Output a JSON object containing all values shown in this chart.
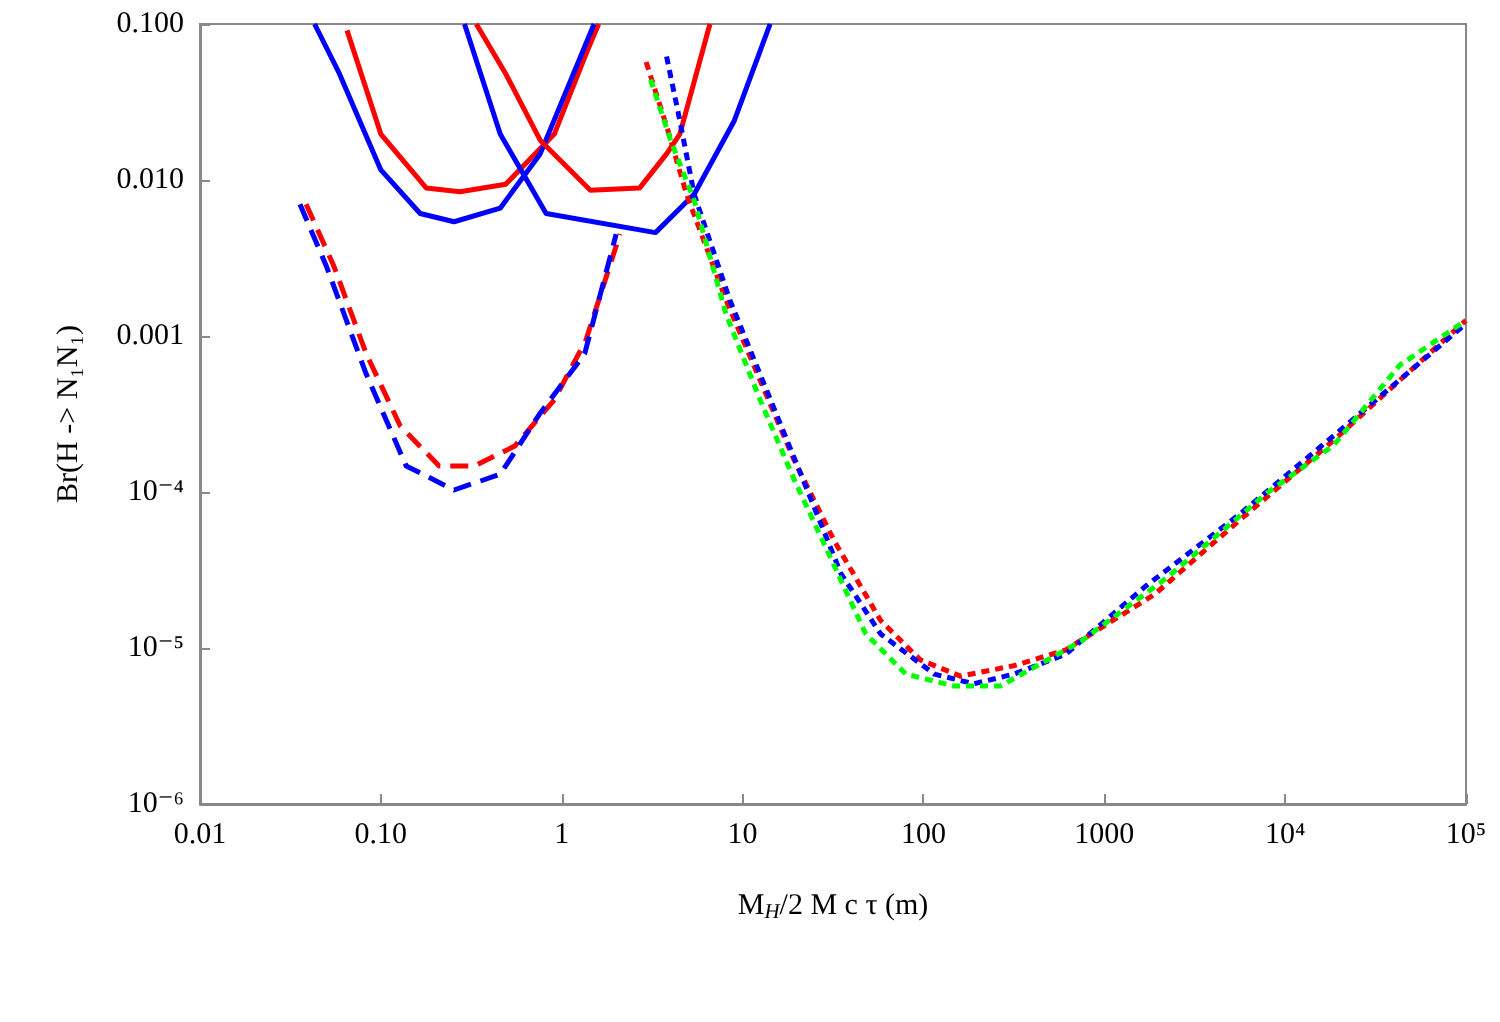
{
  "chart_data": {
    "type": "line",
    "xlabel": "M$_{H}$/2 M c τ (m)",
    "ylabel": "Br(H -> N₁N₁)",
    "log": "xy",
    "grid": false,
    "marker": "none",
    "xlim": [
      0.01,
      100000
    ],
    "ylim": [
      1e-06,
      0.1
    ],
    "xticks": [
      {
        "value": 0.01,
        "label": "0.01"
      },
      {
        "value": 0.1,
        "label": "0.10"
      },
      1,
      10,
      100,
      1000,
      {
        "value": 10000,
        "label": "10⁴"
      },
      {
        "value": 100000,
        "label": "10⁵"
      }
    ],
    "yticks": [
      {
        "value": 1e-06,
        "label": "10⁻⁶"
      },
      {
        "value": 1e-05,
        "label": "10⁻⁵"
      },
      {
        "value": 0.0001,
        "label": "10⁻⁴"
      },
      {
        "value": 0.001,
        "label": "0.001"
      },
      {
        "value": 0.01,
        "label": "0.010"
      },
      {
        "value": 0.1,
        "label": "0.100"
      }
    ],
    "series": [
      {
        "color": "#ff0000",
        "line_style": "solid",
        "x": [
          0.065,
          0.1,
          0.178,
          0.274,
          0.49,
          0.91,
          1.36,
          1.6
        ],
        "values": [
          0.091,
          0.0197,
          0.0089,
          0.0084,
          0.0094,
          0.0197,
          0.064,
          0.1
        ]
      },
      {
        "color": "#0000ff",
        "line_style": "solid",
        "x": [
          0.043,
          0.059,
          0.1,
          0.165,
          0.254,
          0.457,
          0.76,
          1.51
        ],
        "values": [
          0.1,
          0.048,
          0.0116,
          0.0061,
          0.0054,
          0.0066,
          0.0147,
          0.1
        ]
      },
      {
        "color": "#ff0000",
        "line_style": "solid",
        "x": [
          0.337,
          0.49,
          0.76,
          1.44,
          2.7,
          3.8,
          4.5,
          6.6
        ],
        "values": [
          0.1,
          0.048,
          0.018,
          0.0086,
          0.0089,
          0.0147,
          0.0197,
          0.1
        ]
      },
      {
        "color": "#0000ff",
        "line_style": "solid",
        "x": [
          0.29,
          0.457,
          0.82,
          3.3,
          5.4,
          9.0,
          14.2
        ],
        "values": [
          0.1,
          0.0197,
          0.0061,
          0.0046,
          0.0081,
          0.024,
          0.1
        ]
      },
      {
        "color": "#ff0000",
        "line_style": "dashed",
        "x": [
          0.0386,
          0.055,
          0.083,
          0.128,
          0.21,
          0.33,
          0.55,
          0.91,
          1.36,
          2.1
        ],
        "values": [
          0.007,
          0.0028,
          0.00077,
          0.000265,
          0.000147,
          0.000147,
          0.000197,
          0.00039,
          0.00094,
          0.0045
        ]
      },
      {
        "color": "#0000ff",
        "line_style": "dashed",
        "x": [
          0.0357,
          0.05,
          0.083,
          0.138,
          0.254,
          0.457,
          0.76,
          1.34,
          2.0
        ],
        "values": [
          0.007,
          0.0028,
          0.00057,
          0.000147,
          0.000103,
          0.00013,
          0.00032,
          0.00077,
          0.0045
        ]
      },
      {
        "color": "#ff0000",
        "line_style": "dotted",
        "x": [
          2.93,
          3.8,
          4.9,
          8.1,
          12.5,
          19.3,
          32,
          58,
          96,
          160,
          316,
          610,
          1890,
          5600,
          18600,
          43000,
          100000
        ],
        "values": [
          0.057,
          0.0222,
          0.0081,
          0.0017,
          0.00052,
          0.00016,
          4.9e-05,
          1.5e-05,
          8.4e-06,
          6.6e-06,
          7.7e-06,
          9.7e-06,
          2.2e-05,
          6.6e-05,
          0.000215,
          0.00052,
          0.00126
        ]
      },
      {
        "color": "#0000ff",
        "line_style": "dotted",
        "x": [
          3.8,
          4.5,
          5.4,
          8.5,
          21,
          35,
          58,
          115,
          190,
          316,
          610,
          1700,
          5600,
          18600,
          100000
        ],
        "values": [
          0.062,
          0.024,
          0.0081,
          0.0017,
          0.00013,
          3e-05,
          1.23e-05,
          6.8e-06,
          5.9e-06,
          6.8e-06,
          9.1e-06,
          2.5e-05,
          7.2e-05,
          0.00023,
          0.0012
        ]
      },
      {
        "color": "#00ff00",
        "line_style": "dotted",
        "x": [
          3.1,
          4.0,
          5.4,
          8.1,
          12.5,
          19.3,
          32,
          48,
          80,
          148,
          266,
          740,
          2200,
          7900,
          18600,
          43000,
          100000
        ],
        "values": [
          0.044,
          0.018,
          0.0074,
          0.00138,
          0.00039,
          0.00012,
          3.4e-05,
          1.23e-05,
          6.8e-06,
          5.7e-06,
          5.7e-06,
          1.1e-05,
          2.8e-05,
          9.8e-05,
          0.0002,
          0.00065,
          0.00126
        ]
      }
    ]
  }
}
